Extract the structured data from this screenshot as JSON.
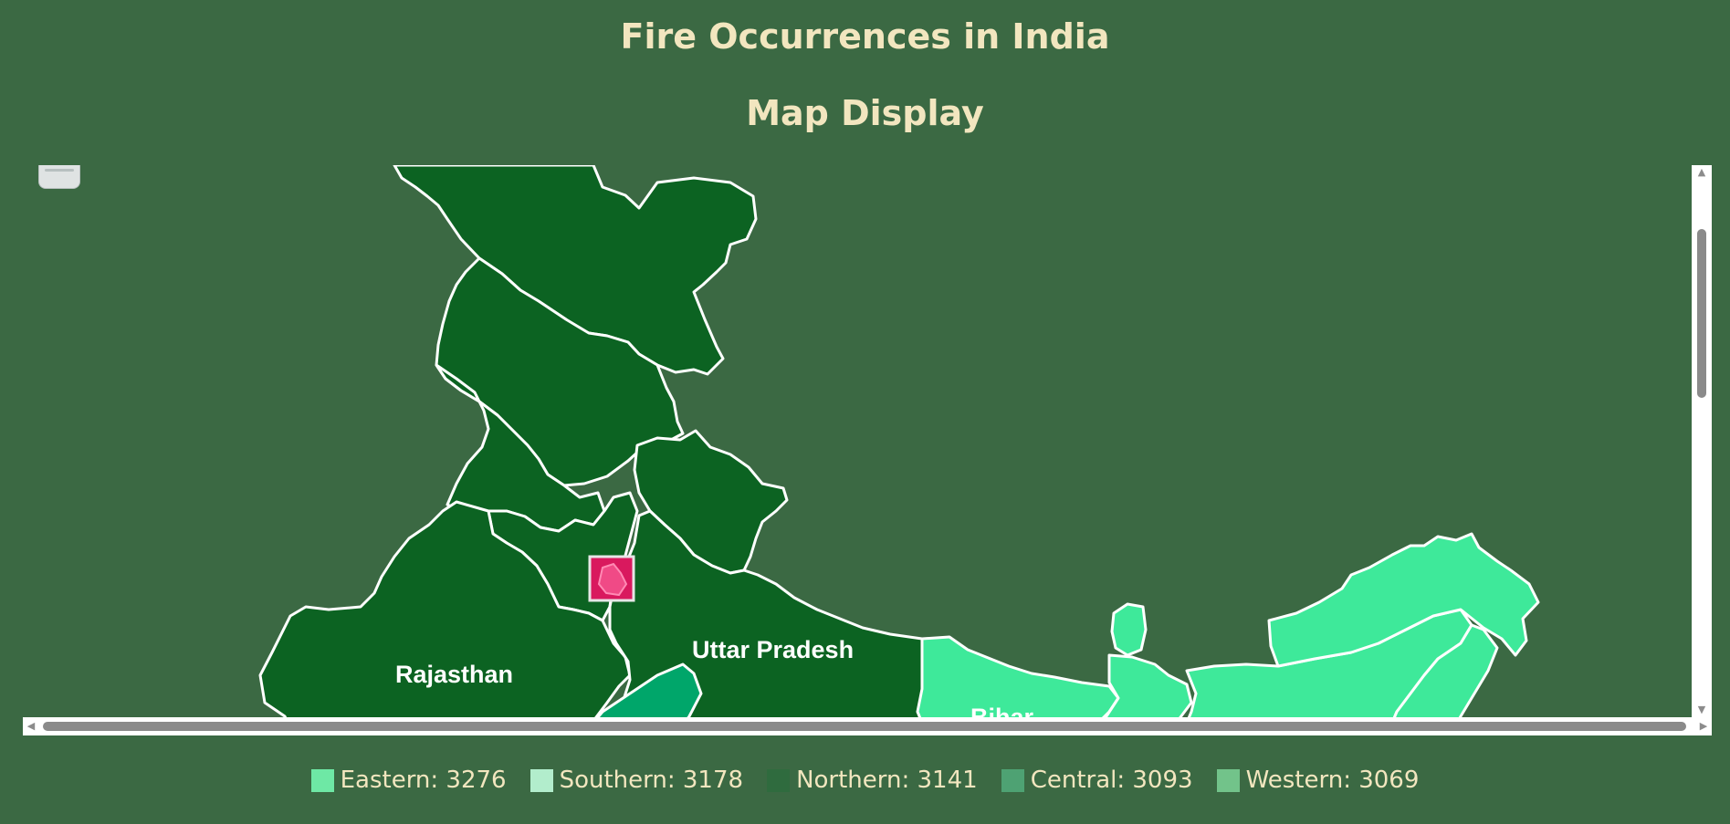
{
  "title": "Fire Occurrences in India",
  "subtitle": "Map Display",
  "map": {
    "labels": {
      "rajasthan": "Rajasthan",
      "uttar_pradesh": "Uttar Pradesh",
      "bihar": "Bihar"
    },
    "colors": {
      "background": "#3b6943",
      "northern_region": "#0c6322",
      "eastern_region": "#3ee99a",
      "central_region": "#00a66a",
      "highlight_delhi": "#d9195e",
      "border": "#ffffff"
    }
  },
  "legend": [
    {
      "label": "Eastern",
      "value": "3276",
      "color": "#6ee8a5"
    },
    {
      "label": "Southern",
      "value": "3178",
      "color": "#b2edcc"
    },
    {
      "label": "Northern",
      "value": "3141",
      "color": "#2f6b3e"
    },
    {
      "label": "Central",
      "value": "3093",
      "color": "#4ea273"
    },
    {
      "label": "Western",
      "value": "3069",
      "color": "#72c38a"
    }
  ],
  "legend_text": [
    "Eastern: 3276",
    "Southern: 3178",
    "Northern: 3141",
    "Central: 3093",
    "Western: 3069"
  ]
}
